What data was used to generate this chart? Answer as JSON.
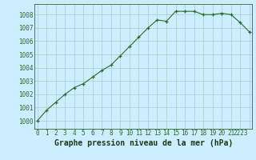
{
  "x": [
    0,
    1,
    2,
    3,
    4,
    5,
    6,
    7,
    8,
    9,
    10,
    11,
    12,
    13,
    14,
    15,
    16,
    17,
    18,
    19,
    20,
    21,
    22,
    23
  ],
  "y": [
    1000.0,
    1000.8,
    1001.4,
    1002.0,
    1002.5,
    1002.8,
    1003.3,
    1003.8,
    1004.2,
    1004.9,
    1005.6,
    1006.3,
    1007.0,
    1007.6,
    1007.5,
    1008.25,
    1008.25,
    1008.25,
    1008.0,
    1008.0,
    1008.1,
    1008.0,
    1007.4,
    1006.7
  ],
  "line_color": "#2d6a2d",
  "marker": "+",
  "bg_color": "#cceeff",
  "grid_color": "#aacccc",
  "xlabel": "Graphe pression niveau de la mer (hPa)",
  "xlabel_fontsize": 7,
  "xlabel_color": "#1a3a1a",
  "ylabel_ticks": [
    1000,
    1001,
    1002,
    1003,
    1004,
    1005,
    1006,
    1007,
    1008
  ],
  "xtick_labels": [
    "0",
    "1",
    "2",
    "3",
    "4",
    "5",
    "6",
    "7",
    "8",
    "9",
    "10",
    "11",
    "12",
    "13",
    "14",
    "15",
    "16",
    "17",
    "18",
    "19",
    "20",
    "21",
    "2223"
  ],
  "xtick_positions": [
    0,
    1,
    2,
    3,
    4,
    5,
    6,
    7,
    8,
    9,
    10,
    11,
    12,
    13,
    14,
    15,
    16,
    17,
    18,
    19,
    20,
    21,
    22
  ],
  "ylim": [
    999.4,
    1008.8
  ],
  "xlim": [
    -0.3,
    23.3
  ]
}
